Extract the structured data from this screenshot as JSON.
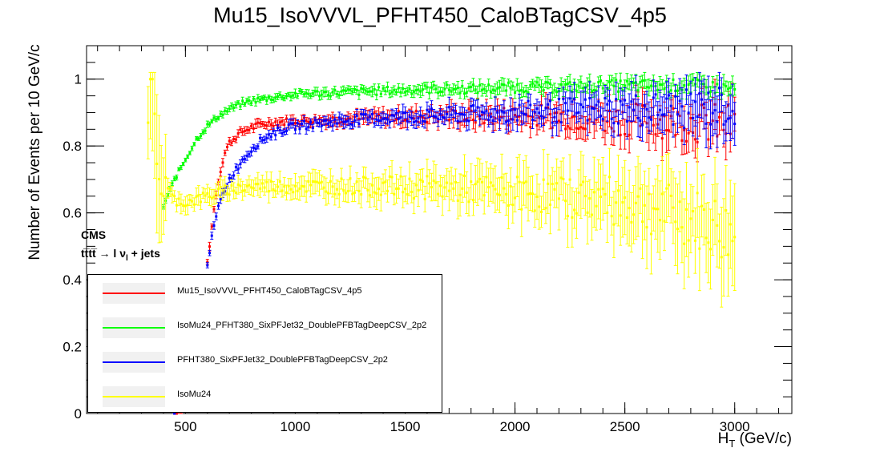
{
  "title": "Mu15_IsoVVVL_PFHT450_CaloBTagCSV_4p5",
  "cms_label": "CMS",
  "process_main": "tt̅tt̅ → l ν",
  "process_sub": "l",
  "process_tail": " + jets",
  "xlabel_main": "H",
  "xlabel_sub": "T",
  "xlabel_unit": " (GeV/c)",
  "chart_data": {
    "type": "scatter",
    "title": "Mu15_IsoVVVL_PFHT450_CaloBTagCSV_4p5",
    "xlabel": "H_T (GeV/c)",
    "ylabel": "Number of Events per 10 GeV/c",
    "xlim": [
      50,
      3260
    ],
    "ylim": [
      0,
      1.1
    ],
    "xticks": [
      500,
      1000,
      1500,
      2000,
      2500,
      3000
    ],
    "yticks": [
      0,
      0.2,
      0.4,
      0.6,
      0.8,
      1
    ],
    "x_tick_labels": [
      "500",
      "1000",
      "1500",
      "2000",
      "2500",
      "3000"
    ],
    "y_tick_labels": [
      "0",
      "0.2",
      "0.4",
      "0.6",
      "0.8",
      "1"
    ],
    "grid": false,
    "legend_position": "bottom-left",
    "x_range_points": [
      325,
      3000
    ],
    "bin_width": 10,
    "series": [
      {
        "name": "Mu15_IsoVVVL_PFHT450_CaloBTagCSV_4p5",
        "color": "#ff0000",
        "points": [
          [
            450,
            0
          ],
          [
            550,
            0.05
          ],
          [
            580,
            0.3
          ],
          [
            600,
            0.45
          ],
          [
            620,
            0.56
          ],
          [
            640,
            0.66
          ],
          [
            660,
            0.73
          ],
          [
            680,
            0.78
          ],
          [
            700,
            0.81
          ],
          [
            750,
            0.84
          ],
          [
            800,
            0.855
          ],
          [
            850,
            0.865
          ],
          [
            900,
            0.87
          ],
          [
            1000,
            0.875
          ],
          [
            1200,
            0.88
          ],
          [
            1400,
            0.885
          ],
          [
            1600,
            0.89
          ],
          [
            1800,
            0.89
          ],
          [
            2000,
            0.89
          ],
          [
            2200,
            0.89
          ],
          [
            2400,
            0.88
          ],
          [
            2600,
            0.88
          ],
          [
            2800,
            0.87
          ],
          [
            3000,
            0.86
          ]
        ]
      },
      {
        "name": "IsoMu24_PFHT380_SixPFJet32_DoublePFBTagDeepCSV_2p2",
        "color": "#00ff00",
        "points": [
          [
            400,
            0.62
          ],
          [
            450,
            0.7
          ],
          [
            500,
            0.76
          ],
          [
            550,
            0.82
          ],
          [
            600,
            0.86
          ],
          [
            650,
            0.89
          ],
          [
            700,
            0.91
          ],
          [
            750,
            0.925
          ],
          [
            800,
            0.935
          ],
          [
            900,
            0.945
          ],
          [
            1000,
            0.955
          ],
          [
            1200,
            0.96
          ],
          [
            1400,
            0.965
          ],
          [
            1600,
            0.97
          ],
          [
            1800,
            0.97
          ],
          [
            2000,
            0.975
          ],
          [
            2200,
            0.975
          ],
          [
            2400,
            0.98
          ],
          [
            2600,
            0.98
          ],
          [
            2800,
            0.98
          ],
          [
            3000,
            0.97
          ]
        ]
      },
      {
        "name": "PFHT380_SixPFJet32_DoublePFBTagDeepCSV_2p2",
        "color": "#0000ff",
        "points": [
          [
            450,
            0
          ],
          [
            560,
            0.2
          ],
          [
            600,
            0.45
          ],
          [
            630,
            0.56
          ],
          [
            660,
            0.64
          ],
          [
            700,
            0.7
          ],
          [
            750,
            0.75
          ],
          [
            800,
            0.79
          ],
          [
            850,
            0.82
          ],
          [
            900,
            0.84
          ],
          [
            1000,
            0.86
          ],
          [
            1200,
            0.875
          ],
          [
            1400,
            0.885
          ],
          [
            1600,
            0.89
          ],
          [
            1800,
            0.895
          ],
          [
            2000,
            0.9
          ],
          [
            2200,
            0.905
          ],
          [
            2400,
            0.91
          ],
          [
            2600,
            0.91
          ],
          [
            2800,
            0.91
          ],
          [
            3000,
            0.92
          ]
        ]
      },
      {
        "name": "IsoMu24",
        "color": "#ffff00",
        "points": [
          [
            330,
            0.8
          ],
          [
            345,
            1.0
          ],
          [
            365,
            0.86
          ],
          [
            380,
            0.7
          ],
          [
            400,
            0.68
          ],
          [
            420,
            0.67
          ],
          [
            450,
            0.64
          ],
          [
            500,
            0.63
          ],
          [
            550,
            0.64
          ],
          [
            600,
            0.65
          ],
          [
            700,
            0.67
          ],
          [
            800,
            0.68
          ],
          [
            900,
            0.68
          ],
          [
            1000,
            0.68
          ],
          [
            1200,
            0.68
          ],
          [
            1400,
            0.68
          ],
          [
            1600,
            0.675
          ],
          [
            1800,
            0.67
          ],
          [
            2000,
            0.66
          ],
          [
            2200,
            0.65
          ],
          [
            2400,
            0.64
          ],
          [
            2600,
            0.62
          ],
          [
            2700,
            0.6
          ],
          [
            2800,
            0.58
          ],
          [
            2900,
            0.56
          ],
          [
            3000,
            0.52
          ]
        ]
      }
    ]
  }
}
